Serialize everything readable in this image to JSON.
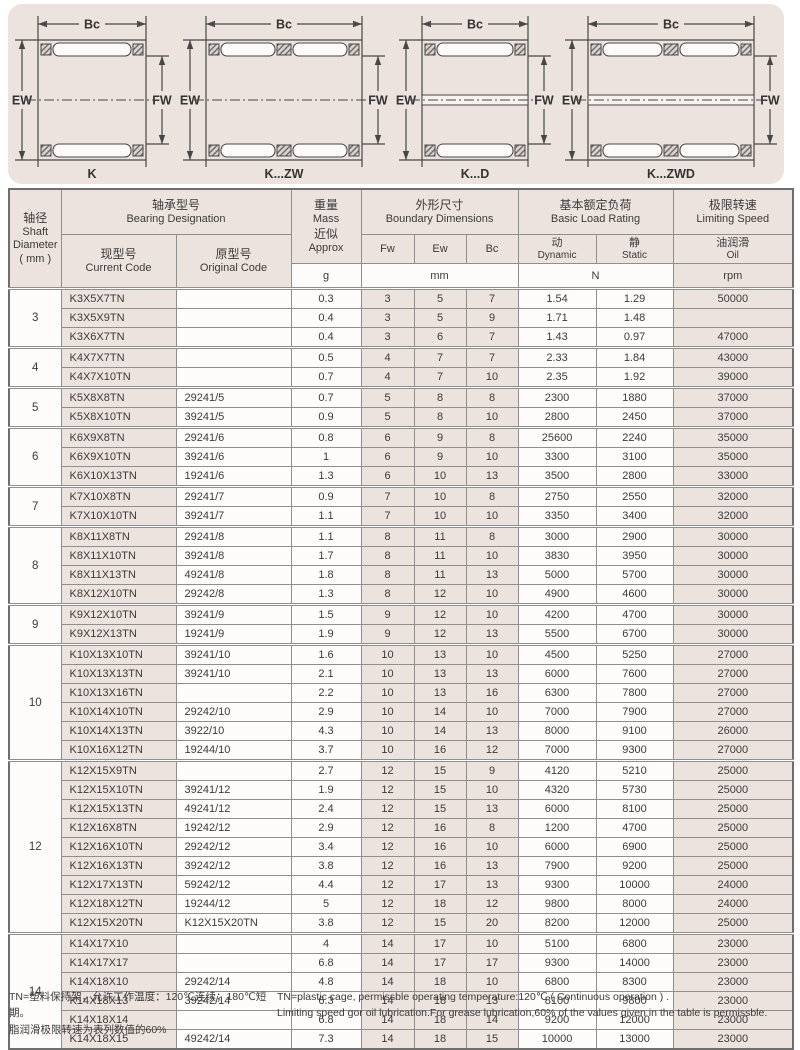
{
  "colors": {
    "panel_bg": "#ece3de",
    "cell_tint": "#ece3de",
    "cell_white": "#fdfcfb",
    "border": "#8f8f8f",
    "line": "#474747"
  },
  "diagrams": {
    "dim_top": "Bc",
    "dim_left": "EW",
    "dim_right": "FW",
    "variants": [
      {
        "label": "K",
        "rows": 1,
        "dband": false
      },
      {
        "label": "K...ZW",
        "rows": 2,
        "dband": false
      },
      {
        "label": "K...D",
        "rows": 1,
        "dband": true
      },
      {
        "label": "K...ZWD",
        "rows": 2,
        "dband": true
      }
    ]
  },
  "table": {
    "header": {
      "shaft": {
        "zh": "轴径",
        "en1": "Shaft",
        "en2": "Diameter",
        "en3": "( mm )"
      },
      "designation": {
        "zh": "轴承型号",
        "en": "Bearing Designation"
      },
      "current": {
        "zh": "现型号",
        "en": "Current Code"
      },
      "original": {
        "zh": "原型号",
        "en": "Original Code"
      },
      "mass": {
        "zh": "重量",
        "en": "Mass",
        "zh2": "近似",
        "en2": "Approx",
        "unit": "g"
      },
      "boundary": {
        "zh": "外形尺寸",
        "en": "Boundary Dimensions",
        "fw": "Fw",
        "ew": "Ew",
        "bc": "Bc",
        "unit": "mm"
      },
      "load": {
        "zh": "基本额定负荷",
        "en": "Basic Load Rating",
        "dyn_zh": "动",
        "dyn_en": "Dynamic",
        "sta_zh": "静",
        "sta_en": "Static",
        "unit": "N"
      },
      "speed": {
        "zh": "极限转速",
        "en": "Limiting Speed",
        "oil_zh": "油润滑",
        "oil_en": "Oil",
        "unit": "rpm"
      }
    },
    "groups": [
      {
        "shaft": "3",
        "rows": [
          [
            "K3X5X7TN",
            "",
            "0.3",
            "3",
            "5",
            "7",
            "1.54",
            "1.29",
            "50000"
          ],
          [
            "K3X5X9TN",
            "",
            "0.4",
            "3",
            "5",
            "9",
            "1.71",
            "1.48",
            ""
          ],
          [
            "K3X6X7TN",
            "",
            "0.4",
            "3",
            "6",
            "7",
            "1.43",
            "0.97",
            "47000"
          ]
        ]
      },
      {
        "shaft": "4",
        "rows": [
          [
            "K4X7X7TN",
            "",
            "0.5",
            "4",
            "7",
            "7",
            "2.33",
            "1.84",
            "43000"
          ],
          [
            "K4X7X10TN",
            "",
            "0.7",
            "4",
            "7",
            "10",
            "2.35",
            "1.92",
            "39000"
          ]
        ]
      },
      {
        "shaft": "5",
        "rows": [
          [
            "K5X8X8TN",
            "29241/5",
            "0.7",
            "5",
            "8",
            "8",
            "2300",
            "1880",
            "37000"
          ],
          [
            "K5X8X10TN",
            "39241/5",
            "0.9",
            "5",
            "8",
            "10",
            "2800",
            "2450",
            "37000"
          ]
        ]
      },
      {
        "shaft": "6",
        "rows": [
          [
            "K6X9X8TN",
            "29241/6",
            "0.8",
            "6",
            "9",
            "8",
            "25600",
            "2240",
            "35000"
          ],
          [
            "K6X9X10TN",
            "39241/6",
            "1",
            "6",
            "9",
            "10",
            "3300",
            "3100",
            "35000"
          ],
          [
            "K6X10X13TN",
            "19241/6",
            "1.3",
            "6",
            "10",
            "13",
            "3500",
            "2800",
            "33000"
          ]
        ]
      },
      {
        "shaft": "7",
        "rows": [
          [
            "K7X10X8TN",
            "29241/7",
            "0.9",
            "7",
            "10",
            "8",
            "2750",
            "2550",
            "32000"
          ],
          [
            "K7X10X10TN",
            "39241/7",
            "1.1",
            "7",
            "10",
            "10",
            "3350",
            "3400",
            "32000"
          ]
        ]
      },
      {
        "shaft": "8",
        "rows": [
          [
            "K8X11X8TN",
            "29241/8",
            "1.1",
            "8",
            "11",
            "8",
            "3000",
            "2900",
            "30000"
          ],
          [
            "K8X11X10TN",
            "39241/8",
            "1.7",
            "8",
            "11",
            "10",
            "3830",
            "3950",
            "30000"
          ],
          [
            "K8X11X13TN",
            "49241/8",
            "1.8",
            "8",
            "11",
            "13",
            "5000",
            "5700",
            "30000"
          ],
          [
            "K8X12X10TN",
            "29242/8",
            "1.3",
            "8",
            "12",
            "10",
            "4900",
            "4600",
            "30000"
          ]
        ]
      },
      {
        "shaft": "9",
        "rows": [
          [
            "K9X12X10TN",
            "39241/9",
            "1.5",
            "9",
            "12",
            "10",
            "4200",
            "4700",
            "30000"
          ],
          [
            "K9X12X13TN",
            "19241/9",
            "1.9",
            "9",
            "12",
            "13",
            "5500",
            "6700",
            "30000"
          ]
        ]
      },
      {
        "shaft": "10",
        "rows": [
          [
            "K10X13X10TN",
            "39241/10",
            "1.6",
            "10",
            "13",
            "10",
            "4500",
            "5250",
            "27000"
          ],
          [
            "K10X13X13TN",
            "39241/10",
            "2.1",
            "10",
            "13",
            "13",
            "6000",
            "7600",
            "27000"
          ],
          [
            "K10X13X16TN",
            "",
            "2.2",
            "10",
            "13",
            "16",
            "6300",
            "7800",
            "27000"
          ],
          [
            "K10X14X10TN",
            "29242/10",
            "2.9",
            "10",
            "14",
            "10",
            "7000",
            "7900",
            "27000"
          ],
          [
            "K10X14X13TN",
            "3922/10",
            "4.3",
            "10",
            "14",
            "13",
            "8000",
            "9100",
            "26000"
          ],
          [
            "K10X16X12TN",
            "19244/10",
            "3.7",
            "10",
            "16",
            "12",
            "7000",
            "9300",
            "27000"
          ]
        ]
      },
      {
        "shaft": "12",
        "rows": [
          [
            "K12X15X9TN",
            "",
            "2.7",
            "12",
            "15",
            "9",
            "4120",
            "5210",
            "25000"
          ],
          [
            "K12X15X10TN",
            "39241/12",
            "1.9",
            "12",
            "15",
            "10",
            "4320",
            "5730",
            "25000"
          ],
          [
            "K12X15X13TN",
            "49241/12",
            "2.4",
            "12",
            "15",
            "13",
            "6000",
            "8100",
            "25000"
          ],
          [
            "K12X16X8TN",
            "19242/12",
            "2.9",
            "12",
            "16",
            "8",
            "1200",
            "4700",
            "25000"
          ],
          [
            "K12X16X10TN",
            "29242/12",
            "3.4",
            "12",
            "16",
            "10",
            "6000",
            "6900",
            "25000"
          ],
          [
            "K12X16X13TN",
            "39242/12",
            "3.8",
            "12",
            "16",
            "13",
            "7900",
            "9200",
            "25000"
          ],
          [
            "K12X17X13TN",
            "59242/12",
            "4.4",
            "12",
            "17",
            "13",
            "9300",
            "10000",
            "24000"
          ],
          [
            "K12X18X12TN",
            "19244/12",
            "5",
            "12",
            "18",
            "12",
            "9800",
            "8000",
            "24000"
          ],
          [
            "K12X15X20TN",
            "K12X15X20TN",
            "3.8",
            "12",
            "15",
            "20",
            "8200",
            "12000",
            "25000"
          ]
        ]
      },
      {
        "shaft": "14",
        "rows": [
          [
            "K14X17X10",
            "",
            "4",
            "14",
            "17",
            "10",
            "5100",
            "6800",
            "23000"
          ],
          [
            "K14X17X17",
            "",
            "6.8",
            "14",
            "17",
            "17",
            "9300",
            "14000",
            "23000"
          ],
          [
            "K14X18X10",
            "29242/14",
            "4.8",
            "14",
            "18",
            "10",
            "6800",
            "8300",
            "23000"
          ],
          [
            "K14X18X13",
            "39242/14",
            "6.3",
            "14",
            "18",
            "13",
            "8100",
            "9800",
            "23000"
          ],
          [
            "K14X18X14",
            "",
            "6.8",
            "14",
            "18",
            "14",
            "9200",
            "12000",
            "23000"
          ],
          [
            "K14X18X15",
            "49242/14",
            "7.3",
            "14",
            "18",
            "15",
            "10000",
            "13000",
            "23000"
          ]
        ]
      }
    ]
  },
  "footnotes": {
    "zh1": "TN=塑料保持架，允许工作温度：120℃连续；180℃短期。",
    "zh2": "脂润滑极限转速为表列数值的60%",
    "en1": "TN=plastic cage, permissble operating temperature:120℃ ( Continuous operation ) .",
    "en2": "Limiting speed gor oil lubrication.For grease lubrication,60% of the values given in the table is permissble."
  }
}
